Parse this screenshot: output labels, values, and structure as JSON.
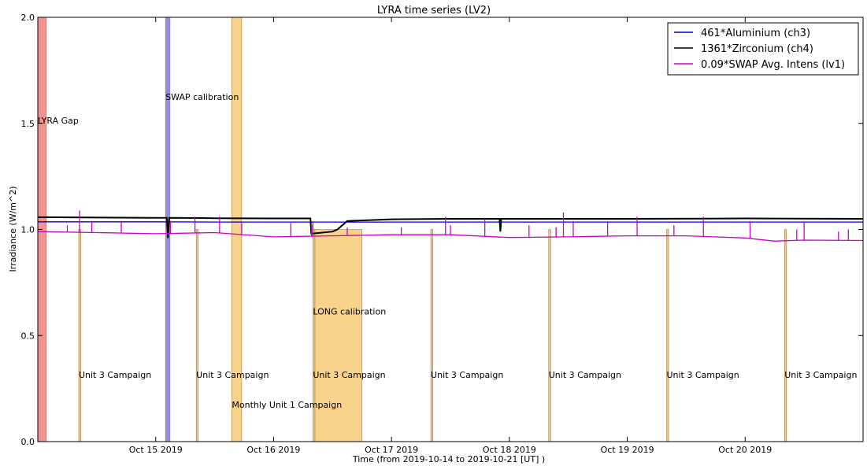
{
  "chart_data": {
    "type": "line",
    "title": "LYRA time series (LV2)",
    "xlabel": "Time (from 2019-10-14 to 2019-10-21 [UT] )",
    "ylabel": "Irradiance (W/m^2)",
    "xlim": [
      "2019-10-14T00:00",
      "2019-10-21T00:00"
    ],
    "ylim": [
      0.0,
      2.0
    ],
    "grid": false,
    "legend_position": "top-right",
    "x_ticks": [
      {
        "date": "2019-10-15T00:00",
        "label": "Oct 15 2019"
      },
      {
        "date": "2019-10-16T00:00",
        "label": "Oct 16 2019"
      },
      {
        "date": "2019-10-17T00:00",
        "label": "Oct 17 2019"
      },
      {
        "date": "2019-10-18T00:00",
        "label": "Oct 18 2019"
      },
      {
        "date": "2019-10-19T00:00",
        "label": "Oct 19 2019"
      },
      {
        "date": "2019-10-20T00:00",
        "label": "Oct 20 2019"
      }
    ],
    "y_ticks": [
      {
        "value": 0.0,
        "label": "0.0"
      },
      {
        "value": 0.5,
        "label": "0.5"
      },
      {
        "value": 1.0,
        "label": "1.0"
      },
      {
        "value": 1.5,
        "label": "1.5"
      },
      {
        "value": 2.0,
        "label": "2.0"
      }
    ],
    "series": [
      {
        "name": "461*Aluminium (ch3)",
        "color": "#0000cc",
        "x": [
          "2019-10-14T00:00",
          "2019-10-15T00:00",
          "2019-10-15T12:00",
          "2019-10-16T00:00",
          "2019-10-16T06:00",
          "2019-10-16T09:00",
          "2019-10-16T12:00",
          "2019-10-17T00:00",
          "2019-10-18T00:00",
          "2019-10-19T00:00",
          "2019-10-20T00:00",
          "2019-10-21T00:00"
        ],
        "values": [
          1.036,
          1.036,
          1.035,
          1.035,
          1.035,
          1.035,
          1.035,
          1.035,
          1.035,
          1.035,
          1.035,
          1.035
        ]
      },
      {
        "name": "1361*Zirconium (ch4)",
        "color": "#000000",
        "x": [
          "2019-10-14T00:00",
          "2019-10-15T00:00",
          "2019-10-15T02:15",
          "2019-10-15T02:30",
          "2019-10-15T02:45",
          "2019-10-15T12:00",
          "2019-10-16T00:00",
          "2019-10-16T07:30",
          "2019-10-16T07:40",
          "2019-10-16T12:00",
          "2019-10-16T13:00",
          "2019-10-16T15:00",
          "2019-10-17T00:00",
          "2019-10-17T12:00",
          "2019-10-17T22:00",
          "2019-10-17T22:10",
          "2019-10-17T22:20",
          "2019-10-18T12:00",
          "2019-10-19T00:00",
          "2019-10-20T00:00",
          "2019-10-21T00:00"
        ],
        "values": [
          1.058,
          1.055,
          1.055,
          0.96,
          1.055,
          1.053,
          1.052,
          1.052,
          0.98,
          0.99,
          1.0,
          1.04,
          1.048,
          1.05,
          1.05,
          0.99,
          1.05,
          1.05,
          1.05,
          1.052,
          1.05
        ]
      },
      {
        "name": "0.09*SWAP Avg. Intens (lv1)",
        "color": "#cc00cc",
        "x": [
          "2019-10-14T00:00",
          "2019-10-14T12:00",
          "2019-10-15T00:00",
          "2019-10-15T12:00",
          "2019-10-16T00:00",
          "2019-10-16T12:00",
          "2019-10-17T00:00",
          "2019-10-17T12:00",
          "2019-10-18T00:00",
          "2019-10-18T12:00",
          "2019-10-19T00:00",
          "2019-10-19T12:00",
          "2019-10-20T00:00",
          "2019-10-20T06:00",
          "2019-10-20T12:00",
          "2019-10-21T00:00"
        ],
        "values": [
          0.99,
          0.985,
          0.98,
          0.985,
          0.965,
          0.97,
          0.975,
          0.975,
          0.962,
          0.965,
          0.97,
          0.97,
          0.96,
          0.945,
          0.95,
          0.948
        ]
      }
    ],
    "spikes": [
      {
        "series": 2,
        "dates": [
          "2019-10-14T06:00",
          "2019-10-14T08:30",
          "2019-10-14T11:00",
          "2019-10-14T17:00",
          "2019-10-15T03:00",
          "2019-10-15T08:00",
          "2019-10-15T13:00",
          "2019-10-15T17:30",
          "2019-10-16T03:30",
          "2019-10-16T07:45",
          "2019-10-16T08:00",
          "2019-10-16T15:00",
          "2019-10-17T02:00",
          "2019-10-17T11:00",
          "2019-10-17T12:00",
          "2019-10-17T19:00",
          "2019-10-18T04:00",
          "2019-10-18T09:30",
          "2019-10-18T11:00",
          "2019-10-18T13:00",
          "2019-10-18T20:00",
          "2019-10-19T02:00",
          "2019-10-19T09:30",
          "2019-10-19T15:30",
          "2019-10-20T01:00",
          "2019-10-20T10:30",
          "2019-10-20T12:00",
          "2019-10-20T19:00",
          "2019-10-20T21:00"
        ],
        "values": [
          1.02,
          1.09,
          1.04,
          1.04,
          1.04,
          1.06,
          1.06,
          1.03,
          1.03,
          1.02,
          1.04,
          1.01,
          1.01,
          1.06,
          1.02,
          1.05,
          1.02,
          1.01,
          1.08,
          1.04,
          1.04,
          1.06,
          1.02,
          1.06,
          1.04,
          1.0,
          1.04,
          0.99,
          1.0
        ]
      }
    ],
    "spans": [
      {
        "start": "2019-10-14T00:00",
        "end": "2019-10-14T01:45",
        "color": "#f08080",
        "opacity": 0.85
      },
      {
        "start": "2019-10-15T02:00",
        "end": "2019-10-15T02:55",
        "color": "#6a6ae0",
        "opacity": 0.75
      },
      {
        "start": "2019-10-15T15:30",
        "end": "2019-10-15T17:30",
        "color": "#f5b63e",
        "opacity": 0.6
      },
      {
        "start": "2019-10-14T08:20",
        "end": "2019-10-14T08:45",
        "color": "#e8c28a",
        "opacity": 0.9,
        "top": 1.0
      },
      {
        "start": "2019-10-15T08:15",
        "end": "2019-10-15T08:40",
        "color": "#e8c28a",
        "opacity": 0.9,
        "top": 1.0
      },
      {
        "start": "2019-10-16T08:00",
        "end": "2019-10-16T08:25",
        "color": "#e8c28a",
        "opacity": 0.9,
        "top": 1.0
      },
      {
        "start": "2019-10-17T08:00",
        "end": "2019-10-17T08:25",
        "color": "#e8c28a",
        "opacity": 0.9,
        "top": 1.0
      },
      {
        "start": "2019-10-18T08:00",
        "end": "2019-10-18T08:25",
        "color": "#e8c28a",
        "opacity": 0.9,
        "top": 1.0
      },
      {
        "start": "2019-10-19T08:00",
        "end": "2019-10-19T08:25",
        "color": "#e8c28a",
        "opacity": 0.9,
        "top": 1.0
      },
      {
        "start": "2019-10-20T08:00",
        "end": "2019-10-20T08:25",
        "color": "#e8c28a",
        "opacity": 0.9,
        "top": 1.0
      },
      {
        "start": "2019-10-16T08:25",
        "end": "2019-10-16T18:00",
        "color": "#f5b63e",
        "opacity": 0.6,
        "top": 1.0
      }
    ],
    "annotations": [
      {
        "text": "LYRA Gap",
        "x": "2019-10-14T00:00",
        "y": 1.5
      },
      {
        "text": "SWAP calibration",
        "x": "2019-10-15T02:00",
        "y": 1.61
      },
      {
        "text": "LONG calibration",
        "x": "2019-10-16T08:00",
        "y": 0.6
      },
      {
        "text": "Monthly Unit 1 Campaign",
        "x": "2019-10-15T15:30",
        "y": 0.16
      },
      {
        "text": "Unit 3 Campaign",
        "x": "2019-10-14T08:20",
        "y": 0.3
      },
      {
        "text": "Unit 3 Campaign",
        "x": "2019-10-15T08:15",
        "y": 0.3
      },
      {
        "text": "Unit 3 Campaign",
        "x": "2019-10-16T08:00",
        "y": 0.3
      },
      {
        "text": "Unit 3 Campaign",
        "x": "2019-10-17T08:00",
        "y": 0.3
      },
      {
        "text": "Unit 3 Campaign",
        "x": "2019-10-18T08:00",
        "y": 0.3
      },
      {
        "text": "Unit 3 Campaign",
        "x": "2019-10-19T08:00",
        "y": 0.3
      },
      {
        "text": "Unit 3 Campaign",
        "x": "2019-10-20T08:00",
        "y": 0.3
      }
    ]
  }
}
